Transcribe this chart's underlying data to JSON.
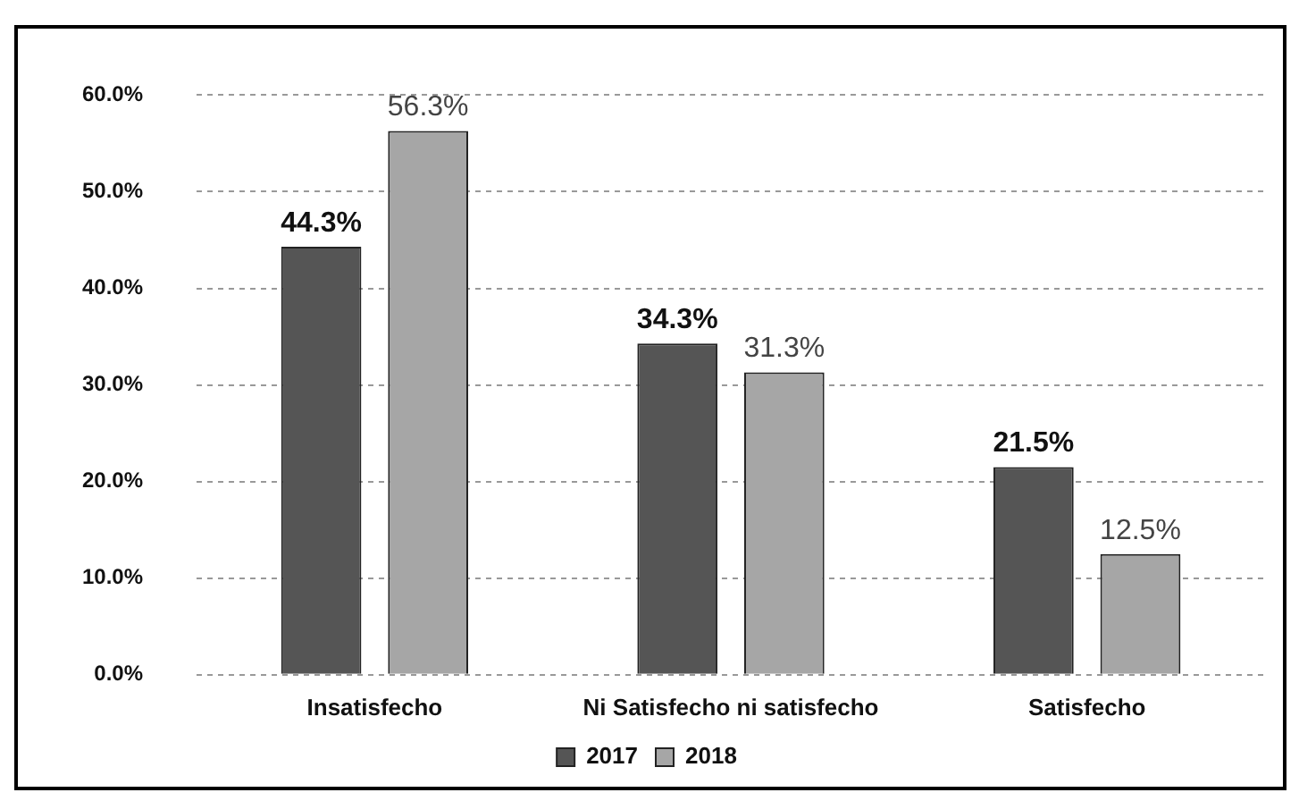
{
  "chart_data": {
    "type": "bar",
    "categories": [
      "Insatisfecho",
      "Ni Satisfecho ni satisfecho",
      "Satisfecho"
    ],
    "series": [
      {
        "name": "2017",
        "color": "#555555",
        "values": [
          44.3,
          34.3,
          21.5
        ],
        "value_labels": [
          "44.3%",
          "34.3%",
          "21.5%"
        ]
      },
      {
        "name": "2018",
        "color": "#a6a6a6",
        "values": [
          56.3,
          31.3,
          12.5
        ],
        "value_labels": [
          "56.3%",
          "31.3%",
          "12.5%"
        ]
      }
    ],
    "ylim": [
      0,
      60
    ],
    "yticks": [
      {
        "value": 0,
        "label": "0.0%"
      },
      {
        "value": 10,
        "label": "10.0%"
      },
      {
        "value": 20,
        "label": "20.0%"
      },
      {
        "value": 30,
        "label": "30.0%"
      },
      {
        "value": 40,
        "label": "40.0%"
      },
      {
        "value": 50,
        "label": "50.0%"
      },
      {
        "value": 60,
        "label": "60.0%"
      }
    ],
    "grid": "y",
    "legend": "bottom",
    "line_style": "dashed"
  }
}
